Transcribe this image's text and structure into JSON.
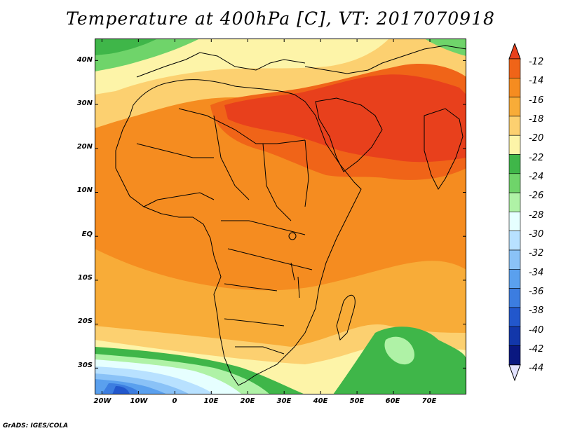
{
  "title": "Temperature at 400hPa [C], VT: 2017070918",
  "credit": "GrADS: IGES/COLA",
  "map": {
    "lon_range": [
      -22,
      80
    ],
    "lat_range": [
      -36,
      45
    ],
    "lat_labels": [
      "40N",
      "30N",
      "20N",
      "10N",
      "EQ",
      "10S",
      "20S",
      "30S"
    ],
    "lat_values": [
      40,
      30,
      20,
      10,
      0,
      -10,
      -20,
      -30
    ],
    "lon_labels": [
      "20W",
      "10W",
      "0",
      "10E",
      "20E",
      "30E",
      "40E",
      "50E",
      "60E",
      "70E"
    ],
    "lon_values": [
      -20,
      -10,
      0,
      10,
      20,
      30,
      40,
      50,
      60,
      70
    ]
  },
  "colorbar": {
    "labels": [
      "-12",
      "-14",
      "-16",
      "-18",
      "-20",
      "-22",
      "-24",
      "-26",
      "-28",
      "-30",
      "-32",
      "-34",
      "-36",
      "-38",
      "-40",
      "-42",
      "-44"
    ],
    "colors": [
      "#e8401c",
      "#f06418",
      "#f58c20",
      "#f8ac38",
      "#fcd070",
      "#fdf4a8",
      "#3fb649",
      "#6fd46a",
      "#aff2a6",
      "#e6ffff",
      "#b8e1ff",
      "#8ac2f7",
      "#5aa0ee",
      "#3c7de0",
      "#2257cc",
      "#1237aa",
      "#0a1880",
      "#0a0a60"
    ],
    "top_arrow_color": "#e8401c",
    "bottom_arrow_color": "#e2e2ff"
  },
  "field": {
    "background_color": "#f58c20",
    "zones": [
      {
        "name": "north-africa-arabia-warm",
        "level": "-14 to -12"
      },
      {
        "name": "southern-ocean-cold",
        "level": "-30 to -42"
      },
      {
        "name": "mediterranean-cool",
        "level": "-26 to -22"
      }
    ]
  }
}
